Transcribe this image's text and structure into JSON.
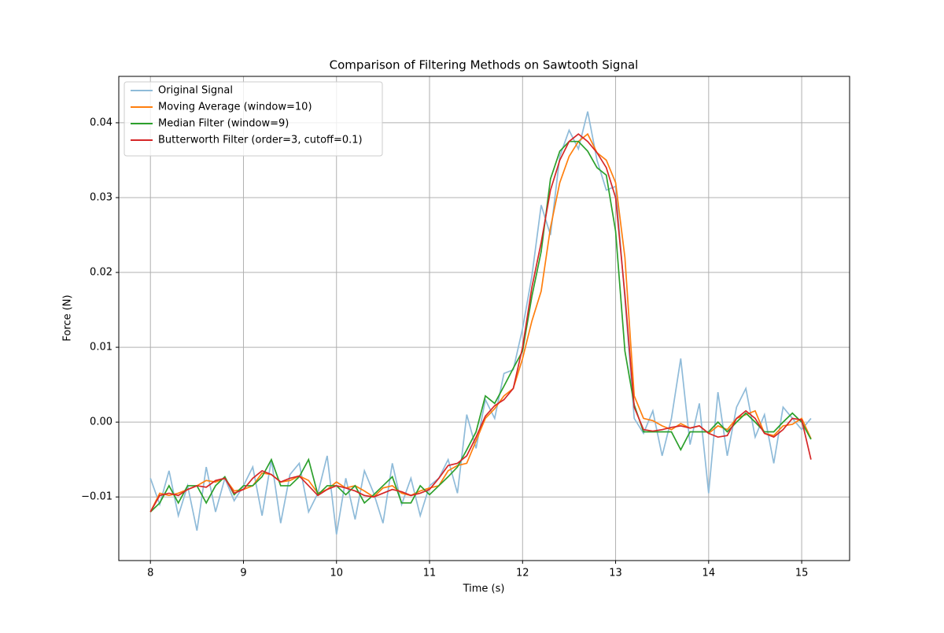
{
  "chart_data": {
    "type": "line",
    "title": "Comparison of Filtering Methods on Sawtooth Signal",
    "xlabel": "Time (s)",
    "ylabel": "Force (N)",
    "x": [
      8,
      8.1,
      8.2,
      8.3,
      8.4,
      8.5,
      8.6,
      8.7,
      8.8,
      8.9,
      9,
      9.1,
      9.2,
      9.3,
      9.4,
      9.5,
      9.6,
      9.7,
      9.8,
      9.9,
      10,
      10.1,
      10.2,
      10.3,
      10.4,
      10.5,
      10.6,
      10.7,
      10.8,
      10.9,
      11,
      11.1,
      11.2,
      11.3,
      11.4,
      11.5,
      11.6,
      11.7,
      11.8,
      11.9,
      12,
      12.1,
      12.2,
      12.3,
      12.4,
      12.5,
      12.6,
      12.7,
      12.8,
      12.9,
      13,
      13.1,
      13.2,
      13.3,
      13.4,
      13.5,
      13.6,
      13.7,
      13.8,
      13.9,
      14,
      14.1,
      14.2,
      14.3,
      14.4,
      14.5,
      14.6,
      14.7,
      14.8,
      14.9,
      15,
      15.1
    ],
    "series": [
      {
        "name": "Original Signal",
        "color": "#8fbbd9",
        "values": [
          -0.0075,
          -0.011,
          -0.0065,
          -0.0125,
          -0.0085,
          -0.0145,
          -0.006,
          -0.012,
          -0.0075,
          -0.0105,
          -0.0085,
          -0.006,
          -0.0125,
          -0.005,
          -0.0135,
          -0.007,
          -0.0055,
          -0.012,
          -0.0095,
          -0.0045,
          -0.015,
          -0.0075,
          -0.013,
          -0.0065,
          -0.0095,
          -0.0135,
          -0.0055,
          -0.011,
          -0.0075,
          -0.0125,
          -0.0085,
          -0.0075,
          -0.005,
          -0.0095,
          0.001,
          -0.0035,
          0.003,
          0.0005,
          0.0065,
          0.007,
          0.0125,
          0.0195,
          0.029,
          0.025,
          0.0355,
          0.039,
          0.0365,
          0.0415,
          0.035,
          0.031,
          0.0315,
          0.0165,
          0.0005,
          -0.0015,
          0.0015,
          -0.0045,
          0.0005,
          0.0085,
          -0.003,
          0.0025,
          -0.0095,
          0.004,
          -0.0045,
          0.002,
          0.0045,
          -0.002,
          0.001,
          -0.0055,
          0.002,
          0.0005,
          -0.001,
          0.0005
        ]
      },
      {
        "name": "Moving Average (window=10)",
        "color": "#ff7f0e",
        "values": [
          -0.012,
          -0.0095,
          -0.0098,
          -0.0095,
          -0.009,
          -0.0085,
          -0.0078,
          -0.008,
          -0.0075,
          -0.0092,
          -0.009,
          -0.0085,
          -0.0068,
          -0.007,
          -0.008,
          -0.0078,
          -0.0072,
          -0.0078,
          -0.0095,
          -0.009,
          -0.008,
          -0.0088,
          -0.0085,
          -0.0092,
          -0.01,
          -0.0088,
          -0.0085,
          -0.0095,
          -0.0098,
          -0.0092,
          -0.0088,
          -0.0085,
          -0.0065,
          -0.0058,
          -0.0055,
          -0.0025,
          0.0005,
          0.0018,
          0.0035,
          0.0045,
          0.0085,
          0.0135,
          0.0175,
          0.026,
          0.032,
          0.0355,
          0.0375,
          0.0385,
          0.036,
          0.035,
          0.032,
          0.022,
          0.0035,
          0.0005,
          0.0002,
          -0.0005,
          -0.001,
          -0.0002,
          -0.0008,
          -0.0005,
          -0.0015,
          -0.0005,
          -0.001,
          0.0005,
          0.001,
          0.0015,
          -0.0015,
          -0.0018,
          -0.0005,
          -0.0003,
          0.0005,
          -0.0022
        ]
      },
      {
        "name": "Median Filter (window=9)",
        "color": "#2ca02c",
        "values": [
          -0.012,
          -0.0108,
          -0.0085,
          -0.0108,
          -0.0085,
          -0.0085,
          -0.0108,
          -0.0085,
          -0.0073,
          -0.0097,
          -0.0085,
          -0.0085,
          -0.0073,
          -0.005,
          -0.0085,
          -0.0085,
          -0.0073,
          -0.005,
          -0.0097,
          -0.0085,
          -0.0085,
          -0.0097,
          -0.0085,
          -0.0108,
          -0.0097,
          -0.0085,
          -0.0073,
          -0.0108,
          -0.0108,
          -0.0085,
          -0.0097,
          -0.0085,
          -0.0073,
          -0.006,
          -0.0037,
          -0.0013,
          0.0035,
          0.0025,
          0.0048,
          0.0072,
          0.0095,
          0.0168,
          0.0228,
          0.0325,
          0.0362,
          0.0375,
          0.0375,
          0.0362,
          0.034,
          0.033,
          0.0255,
          0.0095,
          0.0023,
          -0.0013,
          -0.0013,
          -0.0013,
          -0.0013,
          -0.0037,
          -0.0013,
          -0.0013,
          -0.0013,
          0,
          -0.0013,
          0,
          0.0012,
          0,
          -0.0013,
          -0.0013,
          0,
          0.0012,
          0,
          -0.0023
        ]
      },
      {
        "name": "Butterworth Filter (order=3, cutoff=0.1)",
        "color": "#d62728",
        "values": [
          -0.012,
          -0.0098,
          -0.0095,
          -0.0098,
          -0.009,
          -0.0085,
          -0.0087,
          -0.0078,
          -0.0075,
          -0.0095,
          -0.009,
          -0.0075,
          -0.0065,
          -0.007,
          -0.008,
          -0.0075,
          -0.0072,
          -0.0085,
          -0.0098,
          -0.009,
          -0.0085,
          -0.0088,
          -0.0092,
          -0.0098,
          -0.01,
          -0.0095,
          -0.009,
          -0.0093,
          -0.0098,
          -0.0095,
          -0.009,
          -0.0075,
          -0.0058,
          -0.0055,
          -0.0045,
          -0.002,
          0.0008,
          0.0022,
          0.003,
          0.0045,
          0.01,
          0.018,
          0.024,
          0.031,
          0.035,
          0.0375,
          0.0385,
          0.0375,
          0.036,
          0.034,
          0.03,
          0.017,
          0.002,
          -0.001,
          -0.0012,
          -0.001,
          -0.0007,
          -0.0005,
          -0.0008,
          -0.0005,
          -0.0015,
          -0.002,
          -0.0018,
          0.0005,
          0.0015,
          0.0005,
          -0.0015,
          -0.002,
          -0.001,
          0.0005,
          0.0003,
          -0.005
        ]
      }
    ],
    "xlim": [
      7.66,
      15.515
    ],
    "ylim": [
      -0.0185,
      0.0462
    ],
    "xticks": [
      8,
      9,
      10,
      11,
      12,
      13,
      14,
      15
    ],
    "yticks": [
      {
        "value": -0.01,
        "label": "−0.01"
      },
      {
        "value": 0,
        "label": "0.00"
      },
      0.01,
      0.02,
      0.03,
      0.04
    ],
    "grid": true,
    "legend": "upper left"
  }
}
